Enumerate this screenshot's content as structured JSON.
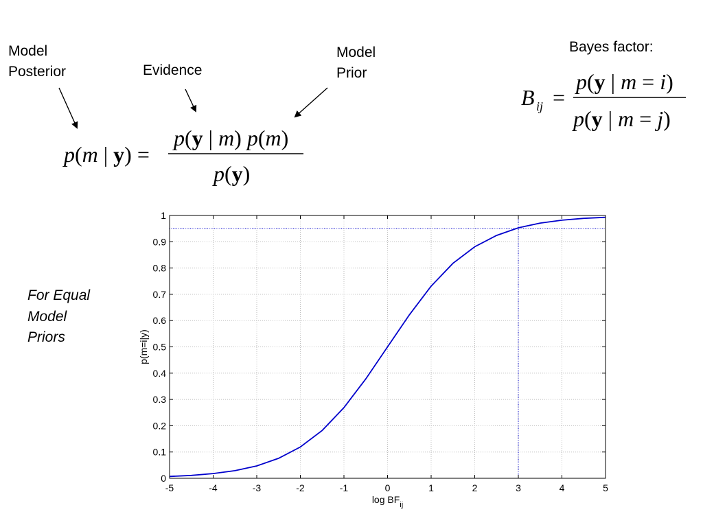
{
  "annotations": {
    "posterior": "Model Posterior",
    "evidence": "Evidence",
    "prior": "Model Prior",
    "bayes_factor_heading": "Bayes factor:",
    "note": "For Equal Model Priors"
  },
  "equations": {
    "bayes_rule": {
      "lhs": "p(m | y)",
      "numerator": "p(y | m) p(m)",
      "denominator": "p(y)"
    },
    "bayes_factor": {
      "lhs": "B_ij",
      "numerator": "p(y | m = i)",
      "denominator": "p(y | m = j)"
    }
  },
  "chart_data": {
    "type": "line",
    "title": "",
    "xlabel": "log BF_ij",
    "ylabel": "p(m=i|y)",
    "xlim": [
      -5,
      5
    ],
    "ylim": [
      0,
      1
    ],
    "x_ticks": [
      "-5",
      "-4",
      "-3",
      "-2",
      "-1",
      "0",
      "1",
      "2",
      "3",
      "4",
      "5"
    ],
    "y_ticks": [
      "0",
      "0.1",
      "0.2",
      "0.3",
      "0.4",
      "0.5",
      "0.6",
      "0.7",
      "0.8",
      "0.9",
      "1"
    ],
    "grid": true,
    "series": [
      {
        "color": "#0000cc",
        "x": [
          -5,
          -4.5,
          -4,
          -3.5,
          -3,
          -2.5,
          -2,
          -1.5,
          -1,
          -0.5,
          0,
          0.5,
          1,
          1.5,
          2,
          2.5,
          3,
          3.5,
          4,
          4.5,
          5
        ],
        "y": [
          0.007,
          0.011,
          0.018,
          0.029,
          0.047,
          0.076,
          0.119,
          0.182,
          0.269,
          0.378,
          0.5,
          0.622,
          0.731,
          0.818,
          0.881,
          0.924,
          0.953,
          0.971,
          0.982,
          0.989,
          0.993
        ]
      }
    ],
    "reference_lines": [
      {
        "orientation": "horizontal",
        "y": 0.95,
        "style": "dotted",
        "color": "#0000cc"
      },
      {
        "orientation": "vertical",
        "x": 3,
        "style": "dotted",
        "color": "#0000cc"
      }
    ]
  }
}
